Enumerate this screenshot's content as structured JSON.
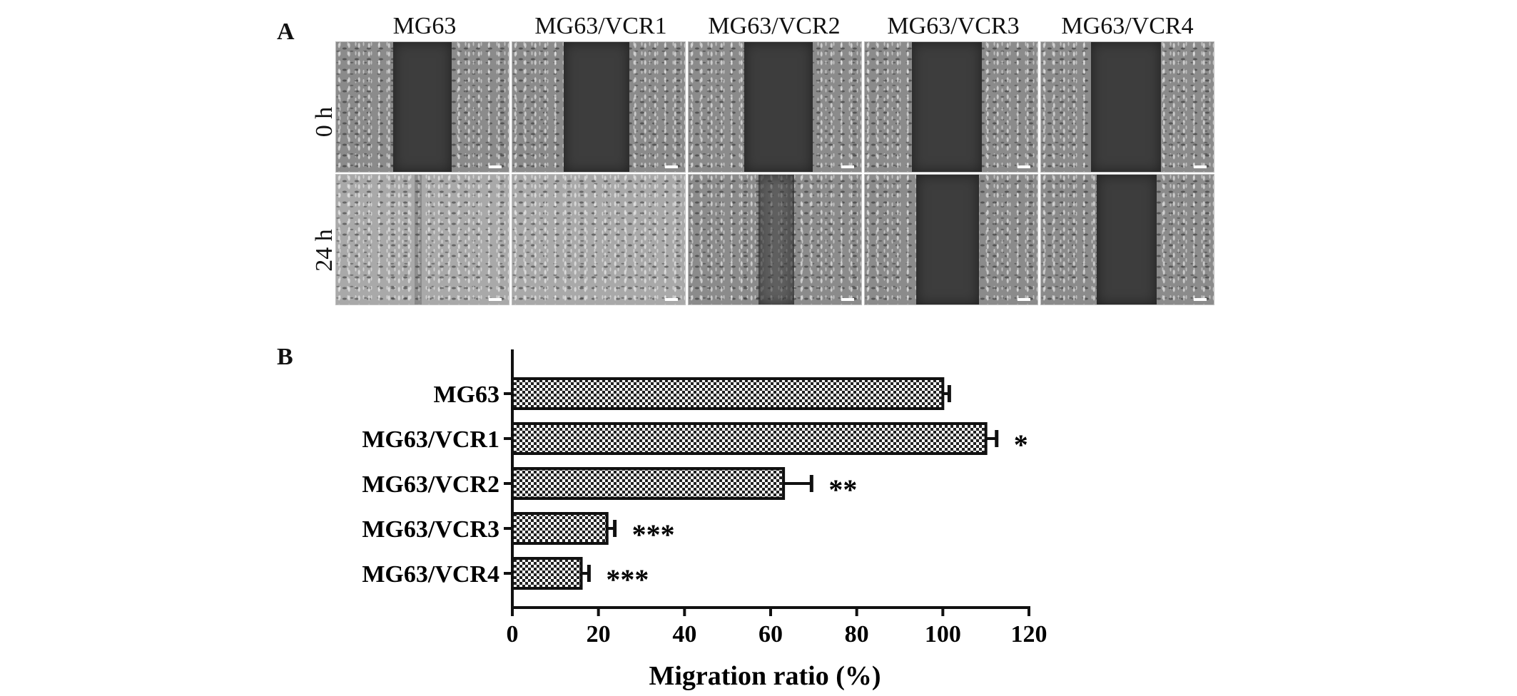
{
  "panel_a": {
    "label": "A",
    "columns": [
      "MG63",
      "MG63/VCR1",
      "MG63/VCR2",
      "MG63/VCR3",
      "MG63/VCR4"
    ],
    "rows": [
      "0 h",
      "24 h"
    ]
  },
  "panel_b": {
    "label": "B"
  },
  "chart_data": {
    "type": "bar",
    "orientation": "horizontal",
    "categories": [
      "MG63",
      "MG63/VCR1",
      "MG63/VCR2",
      "MG63/VCR3",
      "MG63/VCR4"
    ],
    "values": [
      100,
      110,
      63,
      22,
      16
    ],
    "errors": [
      1.5,
      2.5,
      6.5,
      1.8,
      1.8
    ],
    "significance": [
      "",
      "*",
      "**",
      "***",
      "***"
    ],
    "xlabel": "Migration ratio (%)",
    "ylabel": "",
    "xlim": [
      0,
      120
    ],
    "xticks": [
      0,
      20,
      40,
      60,
      80,
      100,
      120
    ],
    "bar_fill": "checkered",
    "grid": false
  }
}
